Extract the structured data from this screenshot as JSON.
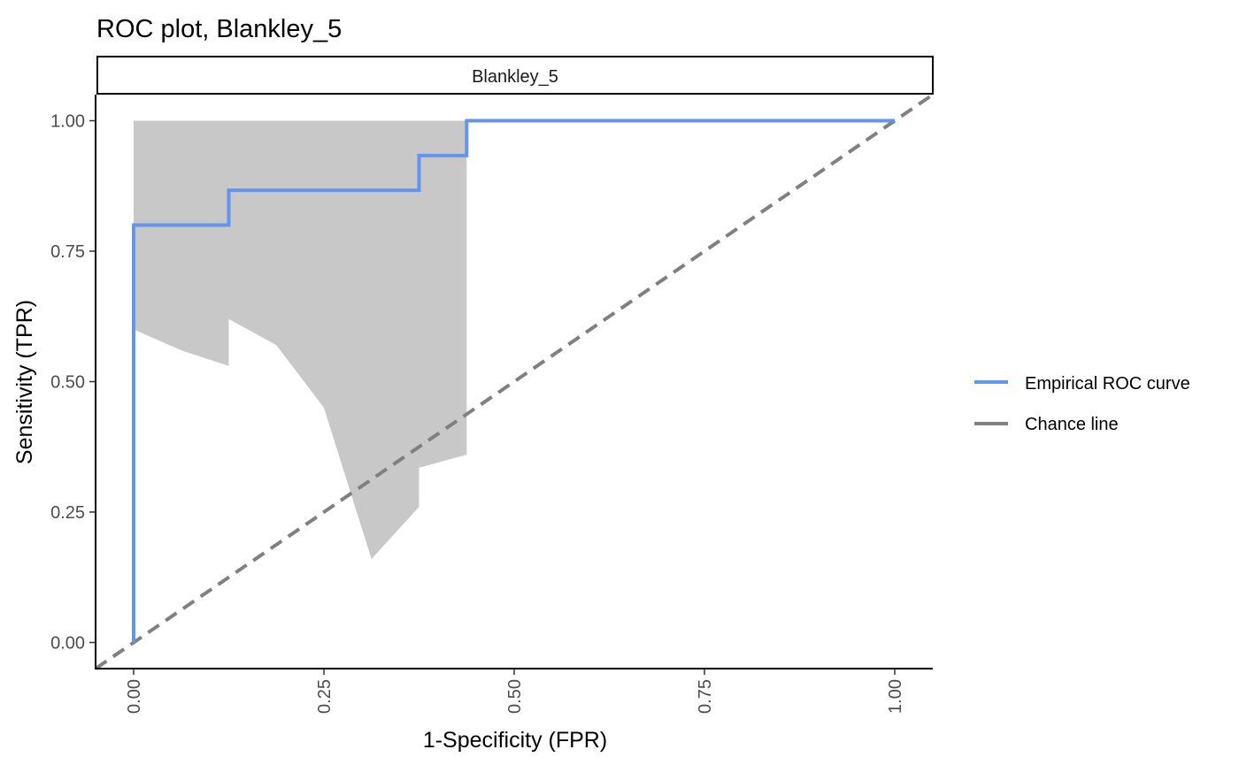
{
  "chart_data": {
    "type": "line",
    "title": "ROC plot, Blankley_5",
    "facet_label": "Blankley_5",
    "xlabel": "1-Specificity (FPR)",
    "ylabel": "Sensitivity (TPR)",
    "xlim": [
      -0.05,
      1.05
    ],
    "ylim": [
      -0.05,
      1.05
    ],
    "x_ticks": [
      0,
      0.25,
      0.5,
      0.75,
      1
    ],
    "x_tick_labels": [
      "0.00",
      "0.25",
      "0.50",
      "0.75",
      "1.00"
    ],
    "y_ticks": [
      0,
      0.25,
      0.5,
      0.75,
      1
    ],
    "y_tick_labels": [
      "0.00",
      "0.25",
      "0.50",
      "0.75",
      "1.00"
    ],
    "x_tick_label_rotation": "vertical",
    "grid": false,
    "legend_position": "right",
    "series": [
      {
        "name": "Empirical ROC curve",
        "style": "step",
        "color": "#6495ED",
        "x": [
          0,
          0,
          0.125,
          0.125,
          0.375,
          0.375,
          0.4375,
          0.4375,
          1.0
        ],
        "y": [
          0,
          0.8,
          0.8,
          0.8667,
          0.8667,
          0.9333,
          0.9333,
          1.0,
          1.0
        ]
      },
      {
        "name": "Chance line",
        "style": "dashed",
        "color": "#808080",
        "x": [
          -0.05,
          1.05
        ],
        "y": [
          -0.05,
          1.05
        ]
      }
    ],
    "confidence_band": {
      "color": "#C8C8C8",
      "x_upper": [
        0,
        0.4375
      ],
      "upper": [
        1.0,
        1.0
      ],
      "x_lower": [
        0,
        0,
        0.0625,
        0.125,
        0.125,
        0.1875,
        0.25,
        0.3125,
        0.375,
        0.375,
        0.4375,
        0.4375
      ],
      "lower": [
        0,
        0.6,
        0.56,
        0.53,
        0.62,
        0.57,
        0.45,
        0.16,
        0.26,
        0.335,
        0.36,
        1.0
      ]
    }
  }
}
